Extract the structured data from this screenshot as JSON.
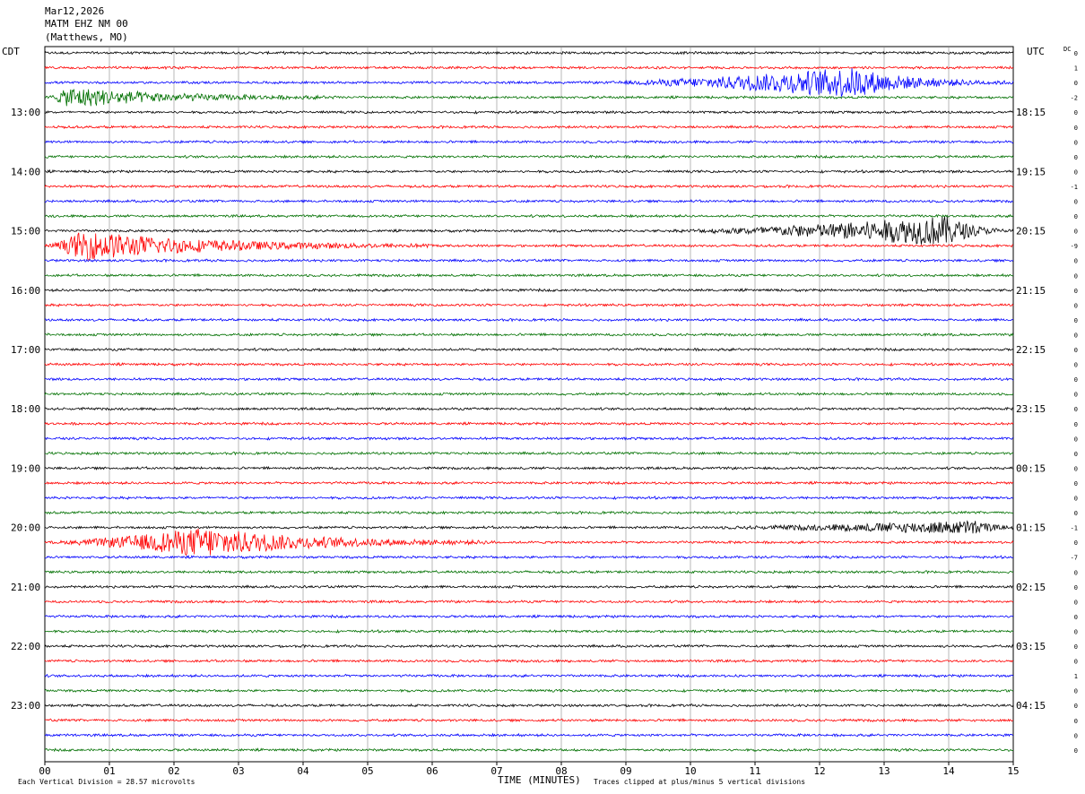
{
  "header": {
    "date": "Mar12,2026",
    "station": "MATM EHZ NM 00",
    "location": "(Matthews, MO)"
  },
  "labels": {
    "left_zone": "CDT",
    "right_zone": "UTC",
    "dc": "DC",
    "xlabel": "TIME (MINUTES)",
    "scale_note": "Each Vertical Division =   28.57 microvolts",
    "clip_note": "Traces clipped at plus/minus 5 vertical divisions"
  },
  "colors": {
    "trace_cycle": [
      "#000000",
      "#ff0000",
      "#0000ff",
      "#007000"
    ],
    "grid": "#888888"
  },
  "chart_data": {
    "type": "line",
    "title": "",
    "xlabel": "TIME (MINUTES)",
    "ylabel": "",
    "xlim": [
      0,
      15
    ],
    "x_ticks": [
      "00",
      "01",
      "02",
      "03",
      "04",
      "05",
      "06",
      "07",
      "08",
      "09",
      "10",
      "11",
      "12",
      "13",
      "14",
      "15"
    ],
    "left_hour_labels": [
      "13:00",
      "14:00",
      "15:00",
      "16:00",
      "17:00",
      "18:00",
      "19:00",
      "20:00",
      "21:00",
      "22:00",
      "23:00"
    ],
    "right_hour_labels": [
      "18:15",
      "19:15",
      "20:15",
      "21:15",
      "22:15",
      "23:15",
      "00:15",
      "01:15",
      "02:15",
      "03:15",
      "04:15"
    ],
    "trace_count": 48,
    "traces_per_hour": 4,
    "minutes_per_trace": 15,
    "dc_offsets": [
      "0",
      "1",
      "0",
      "-2",
      "0",
      "0",
      "0",
      "0",
      "0",
      "-1",
      "0",
      "0",
      "0",
      "-9",
      "0",
      "0",
      "0",
      "0",
      "0",
      "0",
      "0",
      "0",
      "0",
      "0",
      "0",
      "0",
      "0",
      "0",
      "0",
      "0",
      "0",
      "0",
      "-1",
      "0",
      "-7",
      "0",
      "0",
      "0",
      "0",
      "0",
      "0",
      "0",
      "1",
      "0",
      "0",
      "0",
      "0",
      "0"
    ],
    "grid": true,
    "clip_divisions": 5,
    "events": [
      {
        "trace": 3,
        "start_min": 0.0,
        "end_min": 4.5,
        "peak_min": 0.4,
        "amplitude": 3.5
      },
      {
        "trace": 2,
        "start_min": 8.5,
        "end_min": 15.0,
        "peak_min": 12.5,
        "amplitude": 5.0
      },
      {
        "trace": 13,
        "start_min": 0.0,
        "end_min": 6.0,
        "peak_min": 0.6,
        "amplitude": 5.0
      },
      {
        "trace": 12,
        "start_min": 9.5,
        "end_min": 15.0,
        "peak_min": 14.0,
        "amplitude": 5.0
      },
      {
        "trace": 33,
        "start_min": 0.0,
        "end_min": 7.0,
        "peak_min": 2.5,
        "amplitude": 5.0
      },
      {
        "trace": 32,
        "start_min": 10.0,
        "end_min": 15.0,
        "peak_min": 14.5,
        "amplitude": 2.2
      }
    ]
  }
}
